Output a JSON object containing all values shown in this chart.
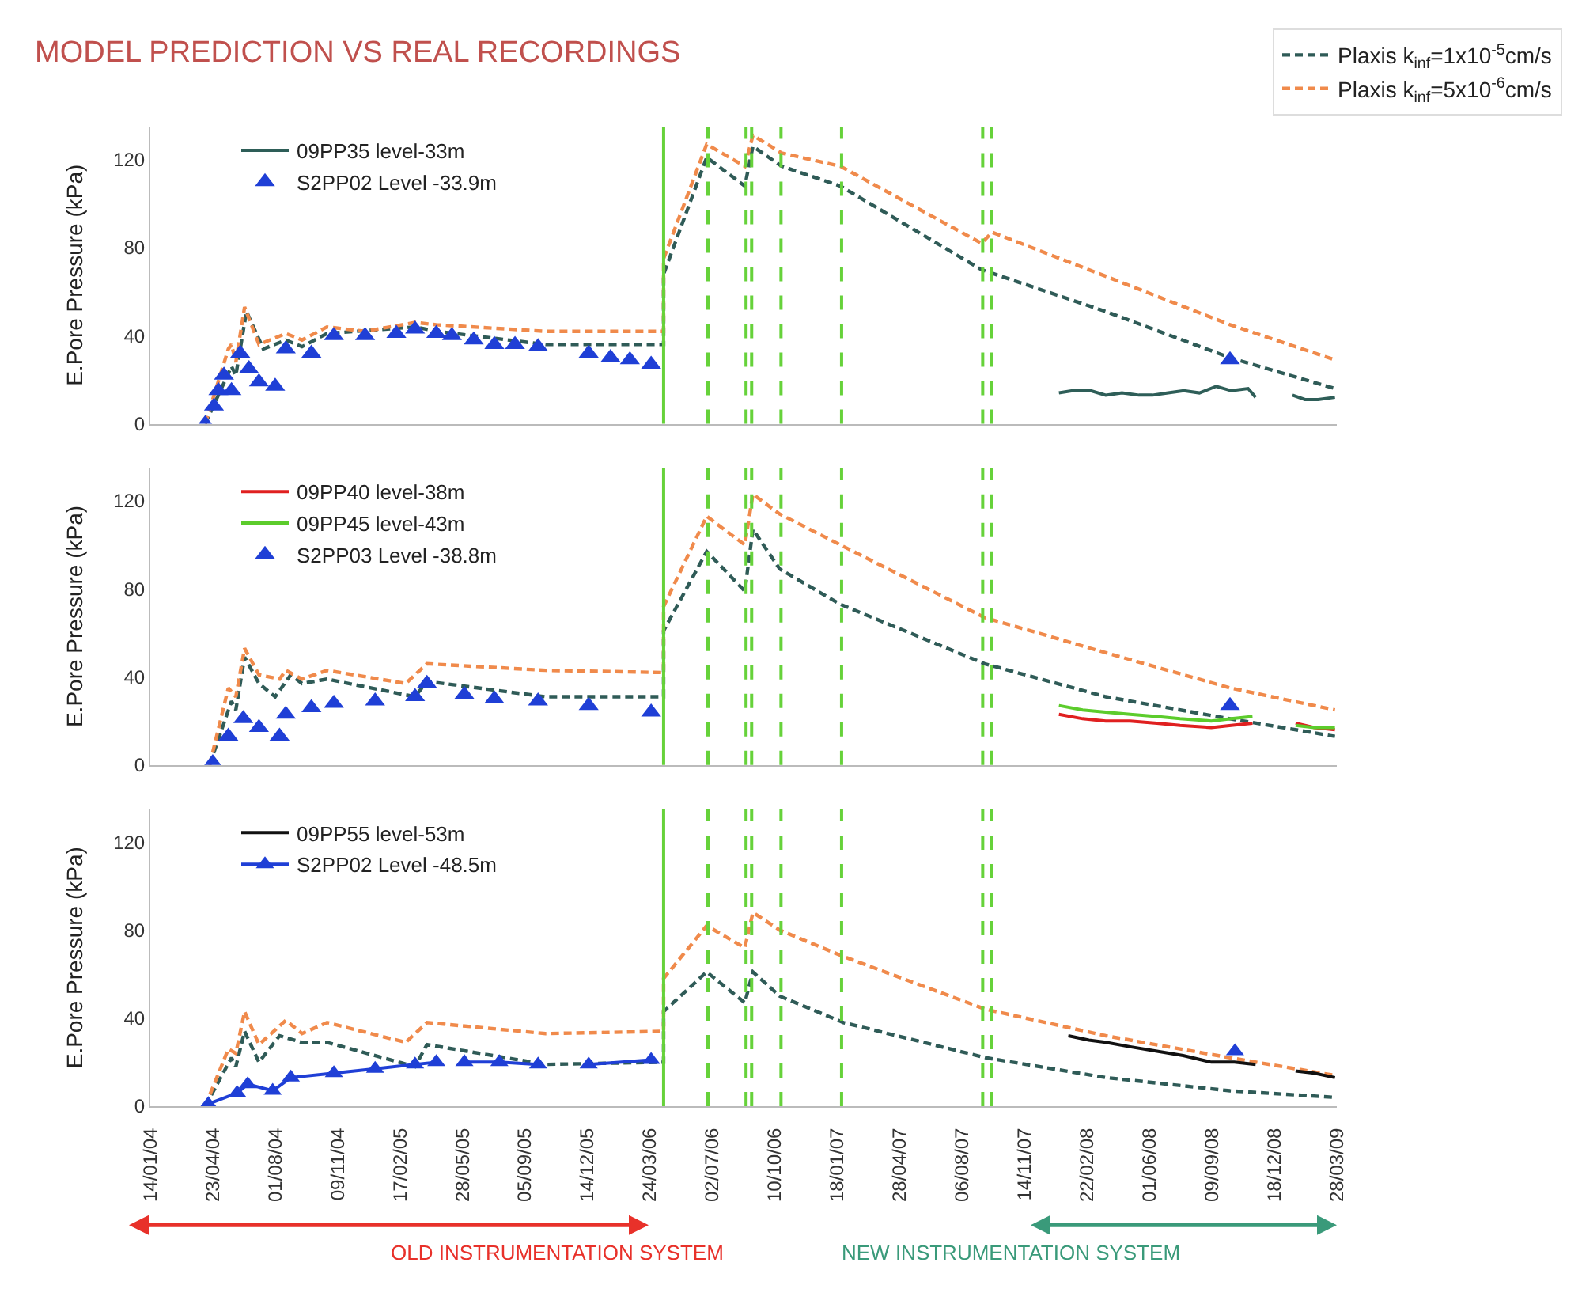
{
  "chart_data": [
    {
      "type": "line",
      "title": "MODEL PREDICTION VS REAL RECORDINGS",
      "ylabel": "E.Pore Pressure (kPa)",
      "xlim": [
        "2004-01-14",
        "2009-03-28"
      ],
      "ylim": [
        0,
        135
      ],
      "yticks": [
        0,
        40,
        80,
        120
      ],
      "tick_labels": "y",
      "legend": "top",
      "series": [
        {
          "name": "Plaxis k$_{inf}$=1x10$^{-5}$cm/s",
          "line_style": "dashed",
          "color": "#2f5b57",
          "x": [
            "2004-04-11",
            "2004-05-23",
            "2004-05-30",
            "2004-06-16",
            "2004-07-13",
            "2004-08-18",
            "2004-09-13",
            "2004-10-23",
            "2005-03-13",
            "2005-04-16",
            "2005-10-08",
            "2006-04-15",
            "2006-04-15",
            "2006-06-23",
            "2006-08-23",
            "2006-09-05",
            "2006-10-21",
            "2007-01-23",
            "2007-09-06",
            "2008-03-23",
            "2008-10-08",
            "2009-03-25"
          ],
          "values": [
            0,
            26,
            22,
            51,
            34,
            38,
            35,
            41,
            44,
            42,
            36,
            36,
            68,
            121,
            108,
            126,
            117,
            108,
            70,
            51,
            30,
            16
          ]
        },
        {
          "name": "Plaxis k$_{inf}$=5x10$^{-6}$cm/s",
          "line_style": "dashed",
          "color": "#f08a4b",
          "x": [
            "2004-04-11",
            "2004-05-18",
            "2004-05-23",
            "2004-05-30",
            "2004-06-13",
            "2004-07-06",
            "2004-08-18",
            "2004-09-13",
            "2004-10-23",
            "2004-12-23",
            "2005-03-13",
            "2005-04-16",
            "2005-10-08",
            "2006-04-15",
            "2006-04-15",
            "2006-06-23",
            "2006-08-23",
            "2006-09-05",
            "2006-10-21",
            "2007-01-23",
            "2007-09-06",
            "2007-09-23",
            "2008-03-23",
            "2008-10-08",
            "2009-03-25"
          ],
          "values": [
            0,
            34,
            36,
            28,
            53,
            36,
            41,
            38,
            44,
            42,
            46,
            45,
            42,
            42,
            75,
            127,
            117,
            131,
            123,
            117,
            82,
            87,
            67,
            45,
            29
          ]
        },
        {
          "name": "09PP35 level-33m",
          "color": "#2e5e58",
          "x": [
            "2008-01-08",
            "2008-01-30",
            "2008-02-28",
            "2008-03-23",
            "2008-04-18",
            "2008-05-15",
            "2008-06-06",
            "2008-07-01",
            "2008-07-26",
            "2008-08-20",
            "2008-09-16",
            "2008-10-10",
            "2008-11-06",
            "2008-11-18",
            "2008-12-20",
            "2009-01-16",
            "2009-02-05",
            "2009-02-26",
            "2009-03-25"
          ],
          "values": [
            14,
            15,
            15,
            13,
            14,
            13,
            13,
            14,
            15,
            14,
            17,
            15,
            16,
            12,
            null,
            13,
            11,
            11,
            12
          ]
        },
        {
          "name": "S2PP02 Level -33.9m",
          "type": "scatter",
          "marker": "triangle",
          "color": "#1f3fd6",
          "x": [
            "2004-04-11",
            "2004-04-25",
            "2004-05-02",
            "2004-05-11",
            "2004-05-23",
            "2004-06-06",
            "2004-06-20",
            "2004-07-06",
            "2004-08-01",
            "2004-08-18",
            "2004-09-28",
            "2004-11-03",
            "2004-12-23",
            "2005-02-11",
            "2005-03-13",
            "2005-04-16",
            "2005-05-11",
            "2005-06-15",
            "2005-07-18",
            "2005-08-20",
            "2005-09-26",
            "2005-12-16",
            "2006-01-20",
            "2006-02-20",
            "2006-03-26",
            "2008-10-08"
          ],
          "values": [
            0,
            8,
            15,
            22,
            15,
            32,
            25,
            19,
            17,
            34,
            32,
            40,
            40,
            41,
            43,
            41,
            40,
            38,
            36,
            36,
            35,
            32,
            30,
            29,
            27,
            29
          ]
        }
      ],
      "ref_lines": [
        {
          "axis": "x",
          "value": "2006-04-15",
          "color": "#66d23a",
          "line_style": "solid"
        },
        {
          "axis": "x",
          "value": "2006-06-25",
          "color": "#66d23a",
          "line_style": "dashed"
        },
        {
          "axis": "x",
          "value": "2006-08-25",
          "color": "#66d23a",
          "line_style": "dashed"
        },
        {
          "axis": "x",
          "value": "2006-09-03",
          "color": "#66d23a",
          "line_style": "dashed"
        },
        {
          "axis": "x",
          "value": "2006-10-20",
          "color": "#66d23a",
          "line_style": "dashed"
        },
        {
          "axis": "x",
          "value": "2007-01-25",
          "color": "#66d23a",
          "line_style": "dashed"
        },
        {
          "axis": "x",
          "value": "2007-09-08",
          "color": "#66d23a",
          "line_style": "dashed"
        },
        {
          "axis": "x",
          "value": "2007-09-22",
          "color": "#66d23a",
          "line_style": "dashed"
        }
      ]
    },
    {
      "type": "line",
      "ylabel": "E.Pore Pressure (kPa)",
      "xlim": [
        "2004-01-14",
        "2009-03-28"
      ],
      "ylim": [
        0,
        135
      ],
      "yticks": [
        0,
        40,
        80,
        120
      ],
      "tick_labels": "y",
      "legend": "top left",
      "series": [
        {
          "line_style": "dashed",
          "color": "#2f5b57",
          "x": [
            "2004-04-18",
            "2004-05-23",
            "2004-05-30",
            "2004-06-13",
            "2004-07-06",
            "2004-08-01",
            "2004-08-26",
            "2004-09-13",
            "2004-10-23",
            "2005-03-13",
            "2005-04-01",
            "2005-10-08",
            "2006-04-15",
            "2006-04-15",
            "2006-06-23",
            "2006-08-23",
            "2006-09-05",
            "2006-10-18",
            "2007-01-23",
            "2007-09-11",
            "2008-03-23",
            "2008-10-08",
            "2009-03-25"
          ],
          "values": [
            0,
            29,
            25,
            49,
            37,
            31,
            41,
            37,
            39,
            31,
            38,
            31,
            31,
            61,
            97,
            79,
            107,
            89,
            73,
            46,
            31,
            21,
            13
          ]
        },
        {
          "line_style": "dashed",
          "color": "#f08a4b",
          "x": [
            "2004-04-18",
            "2004-05-18",
            "2004-05-30",
            "2004-06-13",
            "2004-07-06",
            "2004-08-08",
            "2004-08-18",
            "2004-09-13",
            "2004-10-23",
            "2005-02-26",
            "2005-04-01",
            "2005-10-08",
            "2006-04-15",
            "2006-04-15",
            "2006-06-23",
            "2006-08-23",
            "2006-09-05",
            "2006-10-18",
            "2007-01-23",
            "2007-09-11",
            "2008-03-23",
            "2008-10-08",
            "2009-03-25"
          ],
          "values": [
            0,
            35,
            31,
            53,
            41,
            39,
            43,
            39,
            43,
            37,
            46,
            43,
            42,
            72,
            113,
            100,
            123,
            114,
            100,
            67,
            51,
            35,
            25
          ]
        },
        {
          "name": "09PP40 level-38m",
          "color": "#e02020",
          "x": [
            "2008-01-08",
            "2008-02-15",
            "2008-03-23",
            "2008-05-01",
            "2008-06-13",
            "2008-07-20",
            "2008-09-08",
            "2008-10-10",
            "2008-11-13",
            "2008-12-20",
            "2009-01-21",
            "2009-02-20",
            "2009-03-25"
          ],
          "values": [
            23,
            21,
            20,
            20,
            19,
            18,
            17,
            18,
            19,
            null,
            19,
            17,
            16
          ]
        },
        {
          "name": "09PP45 level-43m",
          "color": "#5ccc2c",
          "x": [
            "2008-01-08",
            "2008-02-15",
            "2008-03-23",
            "2008-05-01",
            "2008-06-13",
            "2008-07-20",
            "2008-09-08",
            "2008-10-10",
            "2008-11-13",
            "2008-12-20",
            "2009-01-21",
            "2009-02-20",
            "2009-03-25"
          ],
          "values": [
            27,
            25,
            24,
            23,
            22,
            21,
            20,
            21,
            22,
            null,
            18,
            17,
            17
          ]
        },
        {
          "name": "S2PP03 Level -38.8m",
          "type": "scatter",
          "marker": "triangle",
          "color": "#1f3fd6",
          "x": [
            "2004-04-23",
            "2004-05-18",
            "2004-06-11",
            "2004-07-06",
            "2004-08-08",
            "2004-08-18",
            "2004-09-28",
            "2004-11-03",
            "2005-01-08",
            "2005-03-13",
            "2005-04-01",
            "2005-05-31",
            "2005-07-18",
            "2005-09-26",
            "2005-12-16",
            "2006-03-26",
            "2008-10-08"
          ],
          "values": [
            1,
            13,
            21,
            17,
            13,
            23,
            26,
            28,
            29,
            31,
            37,
            32,
            30,
            29,
            27,
            24,
            27
          ]
        }
      ],
      "ref_lines": [
        {
          "axis": "x",
          "value": "2006-04-15",
          "color": "#66d23a",
          "line_style": "solid"
        },
        {
          "axis": "x",
          "value": "2006-06-25",
          "color": "#66d23a",
          "line_style": "dashed"
        },
        {
          "axis": "x",
          "value": "2006-08-25",
          "color": "#66d23a",
          "line_style": "dashed"
        },
        {
          "axis": "x",
          "value": "2006-09-03",
          "color": "#66d23a",
          "line_style": "dashed"
        },
        {
          "axis": "x",
          "value": "2006-10-20",
          "color": "#66d23a",
          "line_style": "dashed"
        },
        {
          "axis": "x",
          "value": "2007-01-25",
          "color": "#66d23a",
          "line_style": "dashed"
        },
        {
          "axis": "x",
          "value": "2007-09-08",
          "color": "#66d23a",
          "line_style": "dashed"
        },
        {
          "axis": "x",
          "value": "2007-09-22",
          "color": "#66d23a",
          "line_style": "dashed"
        }
      ]
    },
    {
      "type": "line",
      "ylabel": "E.Pore Pressure (kPa)",
      "xlim": [
        "2004-01-14",
        "2009-03-28"
      ],
      "ylim": [
        0,
        135
      ],
      "yticks": [
        0,
        40,
        80,
        120
      ],
      "legend": "top left",
      "xticks": [
        {
          "value": "2004-01-14",
          "label": "14/01/04"
        },
        {
          "value": "2004-04-23",
          "label": "23/04/04"
        },
        {
          "value": "2004-08-01",
          "label": "01/08/04"
        },
        {
          "value": "2004-11-09",
          "label": "09/11/04"
        },
        {
          "value": "2005-02-17",
          "label": "17/02/05"
        },
        {
          "value": "2005-05-28",
          "label": "28/05/05"
        },
        {
          "value": "2005-09-05",
          "label": "05/09/05"
        },
        {
          "value": "2005-12-14",
          "label": "14/12/05"
        },
        {
          "value": "2006-03-24",
          "label": "24/03/06"
        },
        {
          "value": "2006-07-02",
          "label": "02/07/06"
        },
        {
          "value": "2006-10-10",
          "label": "10/10/06"
        },
        {
          "value": "2007-01-18",
          "label": "18/01/07"
        },
        {
          "value": "2007-04-28",
          "label": "28/04/07"
        },
        {
          "value": "2007-08-06",
          "label": "06/08/07"
        },
        {
          "value": "2007-11-14",
          "label": "14/11/07"
        },
        {
          "value": "2008-02-22",
          "label": "22/02/08"
        },
        {
          "value": "2008-06-01",
          "label": "01/06/08"
        },
        {
          "value": "2008-09-09",
          "label": "09/09/08"
        },
        {
          "value": "2008-12-18",
          "label": "18/12/08"
        },
        {
          "value": "2009-03-28",
          "label": "28/03/09"
        }
      ],
      "annotations": [
        "OLD INSTRUMENTATION SYSTEM",
        "NEW INSTRUMENTATION SYSTEM"
      ],
      "series": [
        {
          "line_style": "dashed",
          "color": "#2f5b57",
          "x": [
            "2004-04-11",
            "2004-05-23",
            "2004-05-30",
            "2004-06-13",
            "2004-07-06",
            "2004-08-08",
            "2004-09-13",
            "2004-10-23",
            "2005-03-13",
            "2005-04-01",
            "2005-10-08",
            "2006-04-15",
            "2006-04-15",
            "2006-06-23",
            "2006-08-23",
            "2006-09-05",
            "2006-10-18",
            "2007-01-28",
            "2007-09-13",
            "2008-03-23",
            "2008-10-08",
            "2009-03-25"
          ],
          "values": [
            0,
            22,
            18,
            34,
            20,
            32,
            29,
            29,
            18,
            28,
            19,
            20,
            43,
            61,
            47,
            61,
            50,
            38,
            22,
            13,
            7,
            4
          ]
        },
        {
          "line_style": "dashed",
          "color": "#f08a4b",
          "x": [
            "2004-04-11",
            "2004-05-18",
            "2004-05-30",
            "2004-06-13",
            "2004-07-06",
            "2004-08-18",
            "2004-09-13",
            "2004-10-23",
            "2005-02-26",
            "2005-04-01",
            "2005-10-08",
            "2006-04-15",
            "2006-04-15",
            "2006-06-23",
            "2006-08-23",
            "2006-09-05",
            "2006-10-18",
            "2007-01-28",
            "2007-09-13",
            "2008-03-23",
            "2008-10-08",
            "2009-03-25"
          ],
          "values": [
            0,
            26,
            24,
            43,
            28,
            39,
            33,
            38,
            29,
            38,
            33,
            34,
            58,
            82,
            72,
            88,
            80,
            68,
            44,
            32,
            22,
            14
          ]
        },
        {
          "name": "09PP55 level-53m",
          "color": "#111111",
          "x": [
            "2008-01-23",
            "2008-02-25",
            "2008-03-23",
            "2008-05-01",
            "2008-06-13",
            "2008-07-25",
            "2008-09-08",
            "2008-10-15",
            "2008-11-18",
            "2008-12-20",
            "2009-01-21",
            "2009-02-20",
            "2009-03-25"
          ],
          "values": [
            32,
            30,
            29,
            27,
            25,
            23,
            20,
            20,
            19,
            null,
            16,
            15,
            13
          ]
        },
        {
          "name": "S2PP02 Level -48.5m",
          "marker": "triangle",
          "color": "#1f3fd6",
          "x": [
            "2004-04-16",
            "2004-06-01",
            "2004-06-18",
            "2004-07-28",
            "2004-08-26",
            "2004-11-03",
            "2005-01-08",
            "2005-03-13",
            "2005-04-16",
            "2005-05-05",
            "2005-05-31",
            "2005-07-26",
            "2005-09-26",
            "2005-10-30",
            "2005-12-16",
            "2006-03-26",
            "2007-06-01",
            "2008-10-16"
          ],
          "values": [
            1,
            6,
            10,
            7,
            13,
            15,
            17,
            19,
            20,
            null,
            20,
            20,
            19,
            null,
            19,
            21,
            null,
            25
          ]
        }
      ],
      "ref_lines": [
        {
          "axis": "x",
          "value": "2006-04-15",
          "color": "#66d23a",
          "line_style": "solid"
        },
        {
          "axis": "x",
          "value": "2006-06-25",
          "color": "#66d23a",
          "line_style": "dashed"
        },
        {
          "axis": "x",
          "value": "2006-08-25",
          "color": "#66d23a",
          "line_style": "dashed"
        },
        {
          "axis": "x",
          "value": "2006-09-03",
          "color": "#66d23a",
          "line_style": "dashed"
        },
        {
          "axis": "x",
          "value": "2006-10-20",
          "color": "#66d23a",
          "line_style": "dashed"
        },
        {
          "axis": "x",
          "value": "2007-01-25",
          "color": "#66d23a",
          "line_style": "dashed"
        },
        {
          "axis": "x",
          "value": "2007-09-08",
          "color": "#66d23a",
          "line_style": "dashed"
        },
        {
          "axis": "x",
          "value": "2007-09-22",
          "color": "#66d23a",
          "line_style": "dashed"
        }
      ]
    }
  ]
}
